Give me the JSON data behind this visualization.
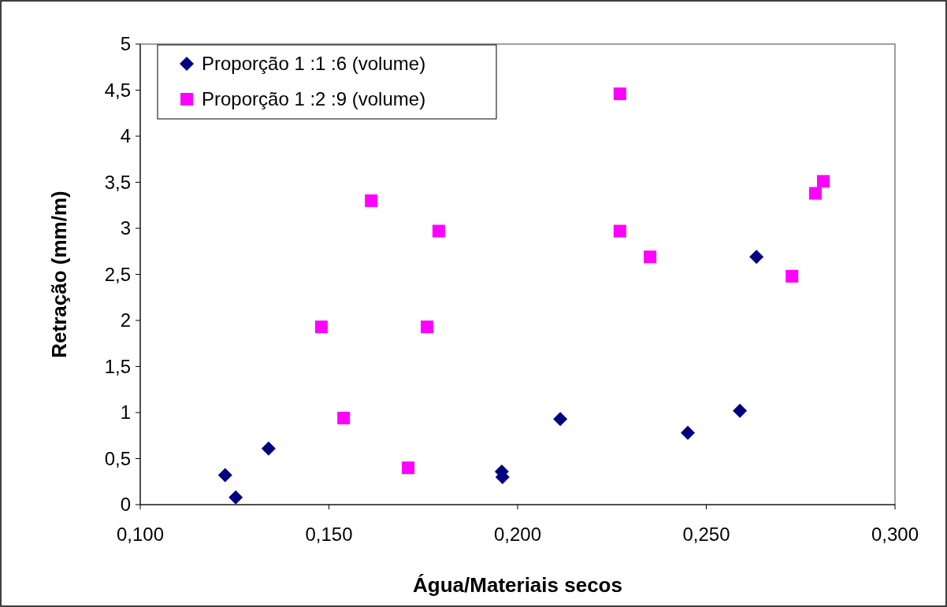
{
  "chart_data": {
    "type": "scatter",
    "xlabel": "Água/Materiais secos",
    "ylabel": "Retração (mm/m)",
    "xlim": [
      0.1,
      0.3
    ],
    "xticks": [
      {
        "value": 0.1,
        "label": "0,100"
      },
      {
        "value": 0.15,
        "label": "0,150"
      },
      {
        "value": 0.2,
        "label": "0,200"
      },
      {
        "value": 0.25,
        "label": "0,250"
      },
      {
        "value": 0.3,
        "label": "0,300"
      }
    ],
    "ylim": [
      0,
      5
    ],
    "yticks": [
      0,
      {
        "value": 0.5,
        "label": "0,5"
      },
      1,
      {
        "value": 1.5,
        "label": "1,5"
      },
      2,
      {
        "value": 2.5,
        "label": "2,5"
      },
      3,
      {
        "value": 3.5,
        "label": "3,5"
      },
      4,
      {
        "value": 4.5,
        "label": "4,5"
      },
      5
    ],
    "grid": false,
    "legend": "top left",
    "series": [
      {
        "name": "Proporção 1 :1 :6 (volume)",
        "color": "#000080",
        "marker": "diamond",
        "x": [
          0.1225,
          0.1253,
          0.134,
          0.1958,
          0.196,
          0.2113,
          0.2451,
          0.2589,
          0.2633
        ],
        "values": [
          0.32,
          0.08,
          0.61,
          0.36,
          0.3,
          0.93,
          0.78,
          1.02,
          2.69
        ]
      },
      {
        "name": "Proporção 1 :2 :9 (volume)",
        "color": "#ff00ff",
        "marker": "square",
        "x": [
          0.148,
          0.1539,
          0.1612,
          0.171,
          0.176,
          0.1791,
          0.2271,
          0.2271,
          0.2351,
          0.2727,
          0.2789,
          0.281
        ],
        "values": [
          1.93,
          0.94,
          3.3,
          0.4,
          1.93,
          2.97,
          4.46,
          2.97,
          2.69,
          2.48,
          3.38,
          3.51
        ]
      }
    ]
  }
}
